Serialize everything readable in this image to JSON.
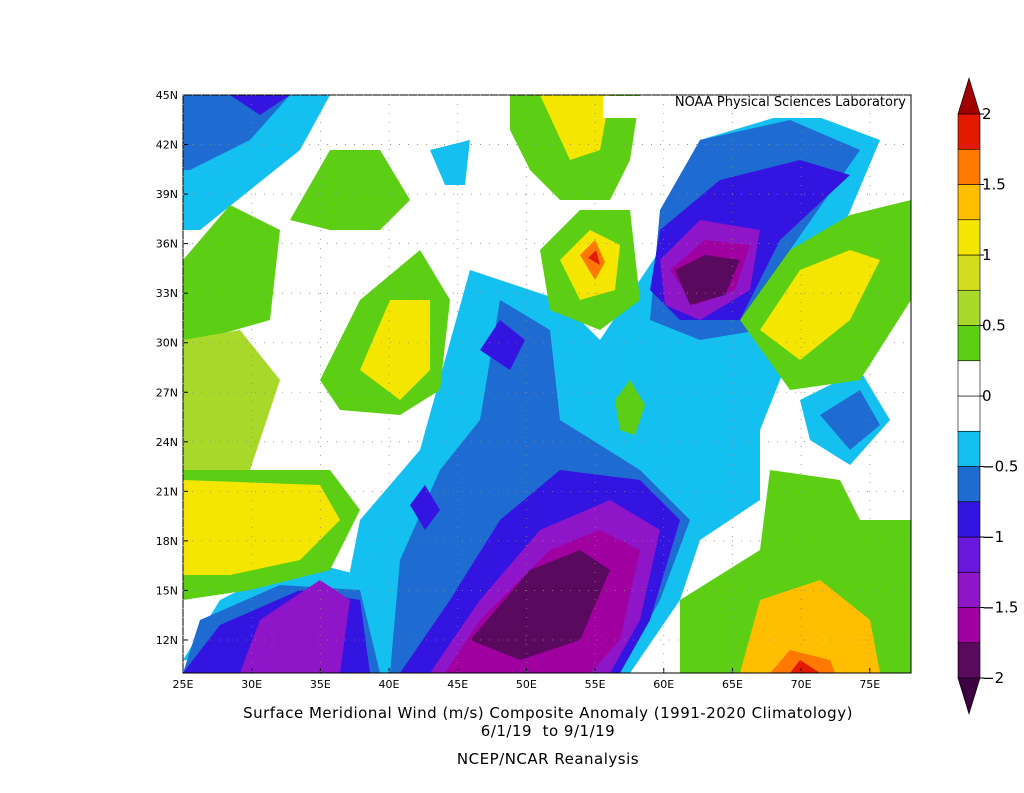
{
  "chart_data": {
    "type": "contour-map",
    "watermark": "NOAA Physical Sciences Laboratory",
    "title": "Surface Meridional Wind (m/s) Composite Anomaly (1991-2020 Climatology)",
    "subtitle": "6/1/19  to 9/1/19",
    "source": "NCEP/NCAR Reanalysis",
    "xlim": [
      25,
      78
    ],
    "ylim": [
      10,
      45
    ],
    "xticks": [
      {
        "value": 25,
        "label": "25E"
      },
      {
        "value": 30,
        "label": "30E"
      },
      {
        "value": 35,
        "label": "35E"
      },
      {
        "value": 40,
        "label": "40E"
      },
      {
        "value": 45,
        "label": "45E"
      },
      {
        "value": 50,
        "label": "50E"
      },
      {
        "value": 55,
        "label": "55E"
      },
      {
        "value": 60,
        "label": "60E"
      },
      {
        "value": 65,
        "label": "65E"
      },
      {
        "value": 70,
        "label": "70E"
      },
      {
        "value": 75,
        "label": "75E"
      }
    ],
    "yticks": [
      {
        "value": 12,
        "label": "12N"
      },
      {
        "value": 15,
        "label": "15N"
      },
      {
        "value": 18,
        "label": "18N"
      },
      {
        "value": 21,
        "label": "21N"
      },
      {
        "value": 24,
        "label": "24N"
      },
      {
        "value": 27,
        "label": "27N"
      },
      {
        "value": 30,
        "label": "30N"
      },
      {
        "value": 33,
        "label": "33N"
      },
      {
        "value": 36,
        "label": "36N"
      },
      {
        "value": 39,
        "label": "39N"
      },
      {
        "value": 42,
        "label": "42N"
      },
      {
        "value": 45,
        "label": "45N"
      }
    ],
    "grid": true,
    "colorbar": {
      "lim": [
        -2,
        2
      ],
      "ticks": [
        2,
        1.5,
        1,
        0.5,
        0,
        {
          "value": -0.5,
          "label": "−0.5"
        },
        {
          "value": -1,
          "label": "−1"
        },
        {
          "value": -1.5,
          "label": "−1.5"
        },
        {
          "value": -2,
          "label": "−2"
        }
      ],
      "colors": [
        "#5a0a5e",
        "#a000a0",
        "#8e16c8",
        "#6a18dc",
        "#3414e0",
        "#1e6cd2",
        "#14c0f0",
        "#ffffff",
        "#ffffff",
        "#5ccf14",
        "#a8d92a",
        "#d2de1e",
        "#f5e600",
        "#ffbe00",
        "#ff7800",
        "#e41a00"
      ],
      "under": "#3c0040",
      "over": "#a00000"
    }
  }
}
